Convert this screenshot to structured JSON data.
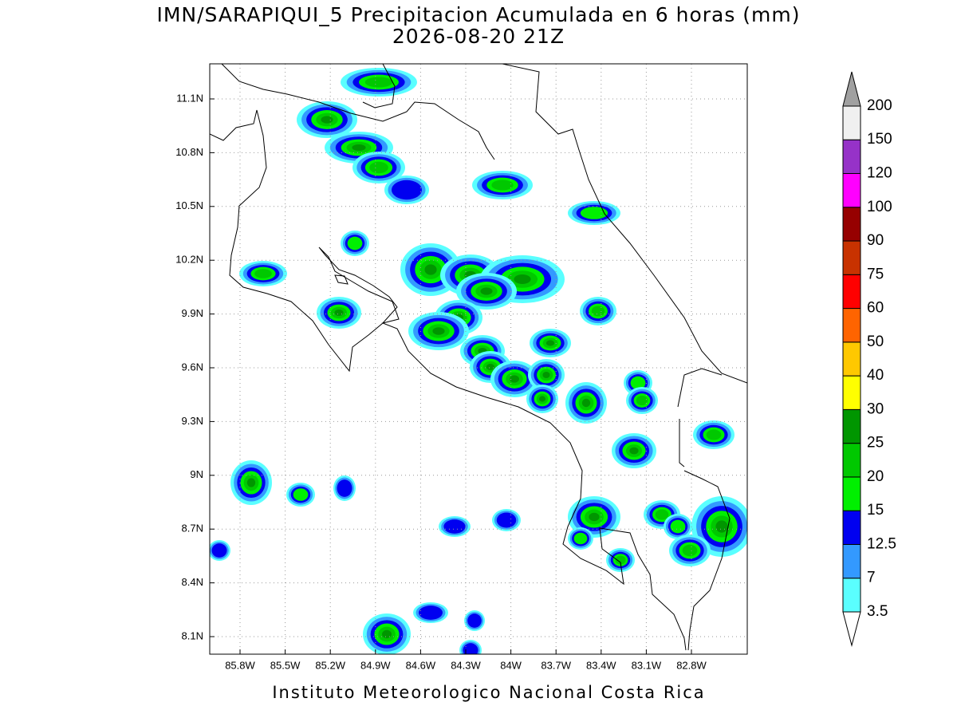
{
  "title": [
    "IMN/SARAPIQUI_5 Precipitacion Acumulada en 6 horas (mm)",
    "2026-08-20 21Z"
  ],
  "map": {
    "lat_labels": [
      "11.1N",
      "10.8N",
      "10.5N",
      "10.2N",
      "9.9N",
      "9.6N",
      "9.3N",
      "9N",
      "8.7N",
      "8.4N",
      "8.1N"
    ],
    "lon_labels": [
      "85.8W",
      "85.5W",
      "85.2W",
      "84.9W",
      "84.6W",
      "84.3W",
      "84W",
      "83.7W",
      "83.4W",
      "83.1W",
      "82.8W"
    ]
  },
  "colorbar": {
    "levels": [
      3.5,
      7,
      12.5,
      15,
      20,
      25,
      30,
      40,
      50,
      60,
      75,
      90,
      100,
      120,
      150,
      200
    ],
    "colors": [
      "#5affff",
      "#3399ff",
      "#0000f0",
      "#00f000",
      "#00c800",
      "#009600",
      "#ffff00",
      "#ffc800",
      "#ff6400",
      "#ff0000",
      "#c83200",
      "#960000",
      "#ff00ff",
      "#9632c8",
      "#f0f0f0"
    ],
    "below_color": "#ffffff",
    "above_color": "#a0a0a0"
  },
  "footer": "Instituto Meteorologico Nacional Costa Rica"
}
